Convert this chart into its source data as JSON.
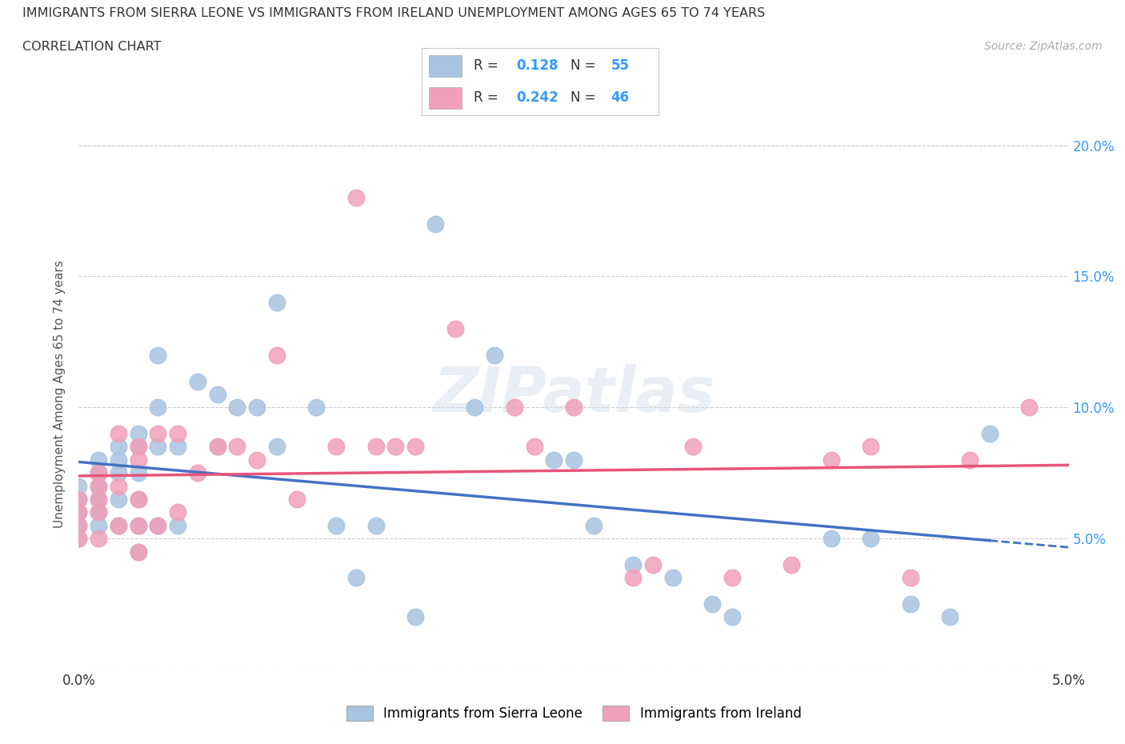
{
  "title_line1": "IMMIGRANTS FROM SIERRA LEONE VS IMMIGRANTS FROM IRELAND UNEMPLOYMENT AMONG AGES 65 TO 74 YEARS",
  "title_line2": "CORRELATION CHART",
  "source_text": "Source: ZipAtlas.com",
  "ylabel": "Unemployment Among Ages 65 to 74 years",
  "xlim": [
    0.0,
    0.05
  ],
  "ylim": [
    0.0,
    0.21
  ],
  "sierra_leone_color": "#a8c4e0",
  "ireland_color": "#f0a0b8",
  "sierra_leone_R": 0.128,
  "sierra_leone_N": 55,
  "ireland_R": 0.242,
  "ireland_N": 46,
  "regression_color_sl": "#4472c4",
  "regression_color_ir": "#e8547a",
  "watermark": "ZIPatlas",
  "sierra_leone_x": [
    0.0,
    0.0,
    0.0,
    0.0,
    0.0,
    0.001,
    0.001,
    0.001,
    0.001,
    0.001,
    0.001,
    0.002,
    0.002,
    0.002,
    0.002,
    0.002,
    0.003,
    0.003,
    0.003,
    0.003,
    0.003,
    0.003,
    0.004,
    0.004,
    0.004,
    0.004,
    0.005,
    0.005,
    0.006,
    0.007,
    0.007,
    0.008,
    0.009,
    0.01,
    0.01,
    0.012,
    0.013,
    0.014,
    0.015,
    0.017,
    0.018,
    0.02,
    0.021,
    0.024,
    0.025,
    0.026,
    0.028,
    0.03,
    0.032,
    0.033,
    0.038,
    0.04,
    0.042,
    0.044,
    0.046
  ],
  "sierra_leone_y": [
    0.07,
    0.065,
    0.06,
    0.055,
    0.05,
    0.08,
    0.075,
    0.07,
    0.065,
    0.06,
    0.055,
    0.085,
    0.08,
    0.075,
    0.065,
    0.055,
    0.09,
    0.085,
    0.075,
    0.065,
    0.055,
    0.045,
    0.12,
    0.1,
    0.085,
    0.055,
    0.085,
    0.055,
    0.11,
    0.105,
    0.085,
    0.1,
    0.1,
    0.14,
    0.085,
    0.1,
    0.055,
    0.035,
    0.055,
    0.02,
    0.17,
    0.1,
    0.12,
    0.08,
    0.08,
    0.055,
    0.04,
    0.035,
    0.025,
    0.02,
    0.05,
    0.05,
    0.025,
    0.02,
    0.09
  ],
  "ireland_x": [
    0.0,
    0.0,
    0.0,
    0.0,
    0.001,
    0.001,
    0.001,
    0.001,
    0.001,
    0.002,
    0.002,
    0.002,
    0.003,
    0.003,
    0.003,
    0.003,
    0.003,
    0.004,
    0.004,
    0.005,
    0.005,
    0.006,
    0.007,
    0.008,
    0.009,
    0.01,
    0.011,
    0.013,
    0.014,
    0.015,
    0.016,
    0.017,
    0.019,
    0.022,
    0.023,
    0.025,
    0.028,
    0.029,
    0.031,
    0.033,
    0.036,
    0.038,
    0.04,
    0.042,
    0.045,
    0.048
  ],
  "ireland_y": [
    0.065,
    0.06,
    0.055,
    0.05,
    0.075,
    0.07,
    0.065,
    0.06,
    0.05,
    0.09,
    0.07,
    0.055,
    0.085,
    0.08,
    0.065,
    0.055,
    0.045,
    0.09,
    0.055,
    0.09,
    0.06,
    0.075,
    0.085,
    0.085,
    0.08,
    0.12,
    0.065,
    0.085,
    0.18,
    0.085,
    0.085,
    0.085,
    0.13,
    0.1,
    0.085,
    0.1,
    0.035,
    0.04,
    0.085,
    0.035,
    0.04,
    0.08,
    0.085,
    0.035,
    0.08,
    0.1
  ]
}
